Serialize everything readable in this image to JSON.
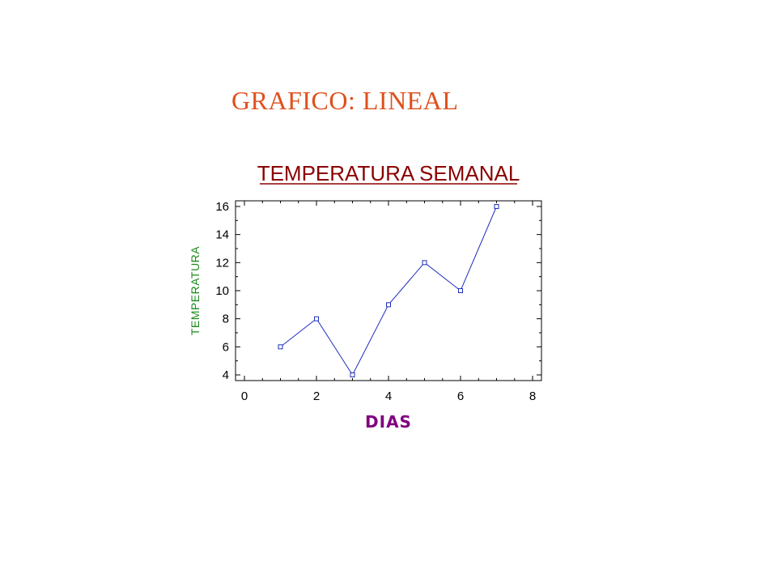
{
  "slide": {
    "heading": "GRAFICO: LINEAL"
  },
  "chart_data": {
    "type": "line",
    "title": "TEMPERATURA SEMANAL",
    "xlabel": "DIAS",
    "ylabel": "TEMPERATURA",
    "xlim": [
      0,
      8
    ],
    "ylim": [
      4,
      16
    ],
    "xticks": [
      0,
      2,
      4,
      6,
      8
    ],
    "yticks": [
      4,
      6,
      8,
      10,
      12,
      14,
      16
    ],
    "x": [
      1,
      2,
      3,
      4,
      5,
      6,
      7
    ],
    "series": [
      {
        "values": [
          6,
          8,
          4,
          9,
          12,
          10,
          16
        ]
      }
    ],
    "grid": false,
    "marker": "square",
    "colors": {
      "line": "#1f2fbf",
      "title": "#8b0000",
      "xlabel": "#800080",
      "ylabel": "#1a8a1a",
      "heading": "#e0501c"
    }
  }
}
